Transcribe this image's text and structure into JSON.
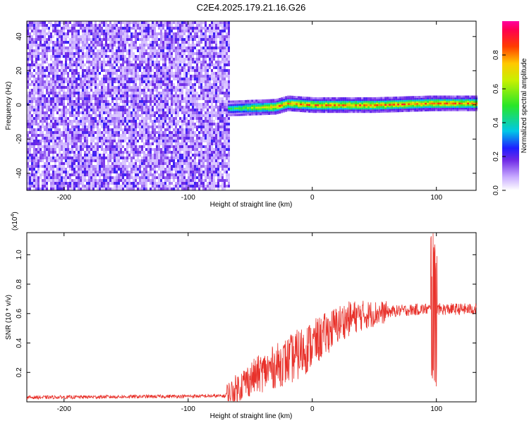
{
  "title": "C2E4.2025.179.21.16.G26",
  "chart_data": [
    {
      "type": "heatmap",
      "xlabel": "Height of straight line (km)",
      "ylabel": "Frequency (Hz)",
      "xlim": [
        -230,
        132
      ],
      "ylim": [
        -50,
        49
      ],
      "xticks": [
        -200,
        -100,
        0,
        100
      ],
      "yticks": [
        -40,
        -20,
        0,
        20,
        40
      ],
      "colorbar": {
        "label": "Normalized spectral amplitude",
        "range": [
          0,
          1
        ],
        "ticks": [
          "0.0",
          "0.2",
          "0.4",
          "0.6",
          "0.8"
        ],
        "tick_values": [
          0.0,
          0.2,
          0.4,
          0.6,
          0.8
        ]
      },
      "noise_region_x": [
        -230,
        -68
      ],
      "signal_band": {
        "x_start": -68,
        "frequency_center_points": [
          [
            -68,
            -2
          ],
          [
            -30,
            -1
          ],
          [
            -20,
            1
          ],
          [
            0,
            0
          ],
          [
            50,
            0
          ],
          [
            95,
            1
          ],
          [
            132,
            1
          ]
        ],
        "half_width_hz": 3,
        "peak_amplitude": 0.9
      }
    },
    {
      "type": "line",
      "xlabel": "Height of straight line (km)",
      "ylabel": "SNR (10 * v/v)",
      "y_multiplier_label": "(x10",
      "y_multiplier_exp": "4",
      "y_multiplier_close": ")",
      "xlim": [
        -230,
        132
      ],
      "ylim": [
        0,
        1.15
      ],
      "xticks": [
        -200,
        -100,
        0,
        100
      ],
      "yticks": [
        0.2,
        0.4,
        0.6,
        0.8,
        1.0
      ],
      "ytick_labels": [
        "0.2",
        "0.4",
        "0.6",
        "0.8",
        "1.0"
      ],
      "series": [
        {
          "color": "#e8312a",
          "envelope_points": [
            [
              -230,
              0.03
            ],
            [
              -150,
              0.035
            ],
            [
              -70,
              0.04
            ],
            [
              -65,
              0.06
            ],
            [
              -55,
              0.13
            ],
            [
              -45,
              0.18
            ],
            [
              -35,
              0.22
            ],
            [
              -25,
              0.26
            ],
            [
              -15,
              0.3
            ],
            [
              -5,
              0.36
            ],
            [
              5,
              0.42
            ],
            [
              15,
              0.49
            ],
            [
              25,
              0.55
            ],
            [
              35,
              0.58
            ],
            [
              50,
              0.6
            ],
            [
              70,
              0.62
            ],
            [
              90,
              0.63
            ],
            [
              100,
              0.63
            ],
            [
              132,
              0.63
            ]
          ],
          "spike": {
            "x": 98,
            "min": 0.08,
            "max": 1.15
          }
        }
      ]
    }
  ]
}
